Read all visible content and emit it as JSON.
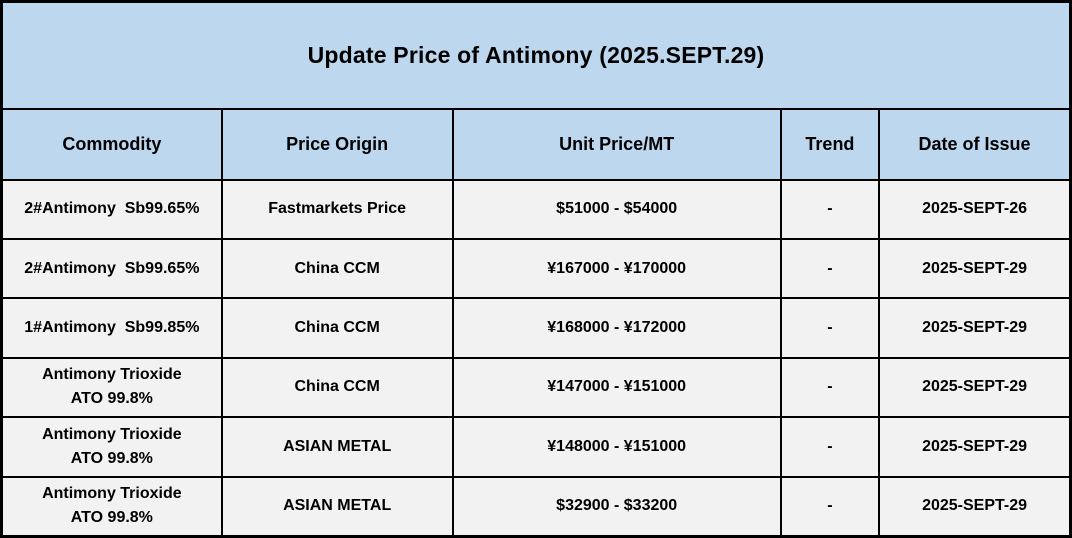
{
  "title": "Update Price of Antimony (2025.SEPT.29)",
  "colors": {
    "header_bg": "#BDD7EE",
    "row_bg": "#F2F2F2",
    "border": "#000000",
    "text": "#000000"
  },
  "table": {
    "columns": [
      {
        "key": "commodity",
        "label": "Commodity"
      },
      {
        "key": "origin",
        "label": "Price Origin"
      },
      {
        "key": "price",
        "label": "Unit Price/MT"
      },
      {
        "key": "trend",
        "label": "Trend"
      },
      {
        "key": "date",
        "label": "Date of Issue"
      }
    ],
    "rows": [
      {
        "commodity": "2#Antimony  Sb99.65%",
        "origin": "Fastmarkets Price",
        "price": "$51000 - $54000",
        "trend": "-",
        "date": "2025-SEPT-26"
      },
      {
        "commodity": "2#Antimony  Sb99.65%",
        "origin": "China CCM",
        "price": "¥167000 - ¥170000",
        "trend": "-",
        "date": "2025-SEPT-29"
      },
      {
        "commodity": "1#Antimony  Sb99.85%",
        "origin": "China CCM",
        "price": "¥168000 - ¥172000",
        "trend": "-",
        "date": "2025-SEPT-29"
      },
      {
        "commodity": "Antimony Trioxide\nATO 99.8%",
        "origin": "China CCM",
        "price": "¥147000 - ¥151000",
        "trend": "-",
        "date": "2025-SEPT-29"
      },
      {
        "commodity": "Antimony Trioxide\nATO 99.8%",
        "origin": "ASIAN METAL",
        "price": "¥148000 - ¥151000",
        "trend": "-",
        "date": "2025-SEPT-29"
      },
      {
        "commodity": "Antimony Trioxide\nATO 99.8%",
        "origin": "ASIAN METAL",
        "price": "$32900 - $33200",
        "trend": "-",
        "date": "2025-SEPT-29"
      }
    ]
  }
}
